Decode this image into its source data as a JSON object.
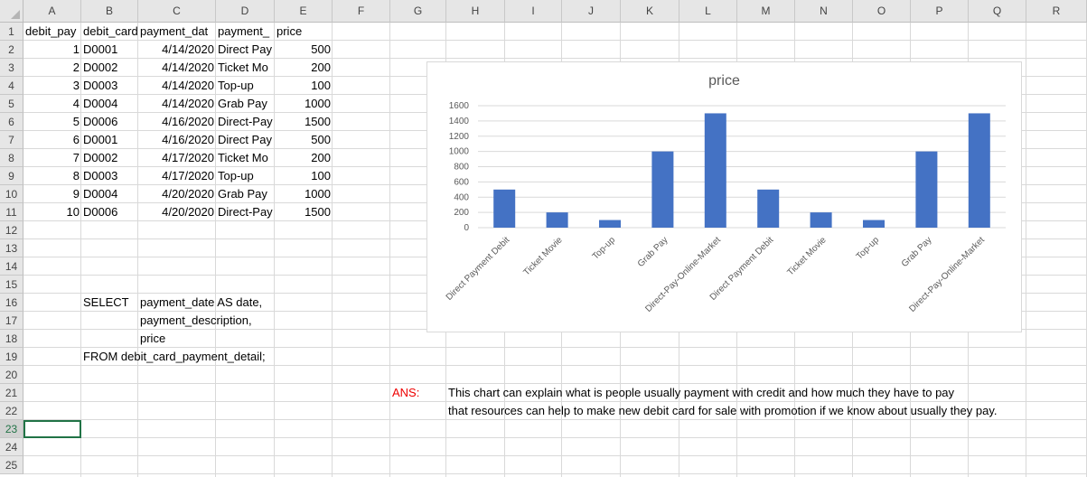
{
  "columns": [
    "A",
    "B",
    "C",
    "D",
    "E",
    "F",
    "G",
    "H",
    "I",
    "J",
    "K",
    "L",
    "M",
    "N",
    "O",
    "P",
    "Q",
    "R"
  ],
  "rows": [
    "1",
    "2",
    "3",
    "4",
    "5",
    "6",
    "7",
    "8",
    "9",
    "10",
    "11",
    "12",
    "13",
    "14",
    "15",
    "16",
    "17",
    "18",
    "19",
    "20",
    "21",
    "22",
    "23",
    "24",
    "25"
  ],
  "headers": [
    "debit_pay",
    "debit_card",
    "payment_dat",
    "payment_",
    "price"
  ],
  "table": [
    [
      "1",
      "D0001",
      "4/14/2020",
      "Direct Pay",
      "500"
    ],
    [
      "2",
      "D0002",
      "4/14/2020",
      "Ticket Mo",
      "200"
    ],
    [
      "3",
      "D0003",
      "4/14/2020",
      "Top-up",
      "100"
    ],
    [
      "4",
      "D0004",
      "4/14/2020",
      "Grab Pay",
      "1000"
    ],
    [
      "5",
      "D0006",
      "4/16/2020",
      "Direct-Pay",
      "1500"
    ],
    [
      "6",
      "D0001",
      "4/16/2020",
      "Direct Pay",
      "500"
    ],
    [
      "7",
      "D0002",
      "4/17/2020",
      "Ticket Mo",
      "200"
    ],
    [
      "8",
      "D0003",
      "4/17/2020",
      "Top-up",
      "100"
    ],
    [
      "9",
      "D0004",
      "4/20/2020",
      "Grab Pay",
      "1000"
    ],
    [
      "10",
      "D0006",
      "4/20/2020",
      "Direct-Pay",
      "1500"
    ]
  ],
  "sql": {
    "select": "SELECT",
    "line1": "payment_date AS date,",
    "line2": "payment_description,",
    "line3": "price",
    "from": "FROM debit_card_payment_detail;"
  },
  "answer": {
    "label": "ANS:",
    "line1": "This chart can explain what is people usually payment with credit and how much they have to pay",
    "line2": "that resources can help to make new debit card for sale with promotion if we know about usually they pay."
  },
  "selected_row": "23",
  "bar_color": "#4472c4",
  "chart_data": {
    "type": "bar",
    "title": "price",
    "categories": [
      "Direct Payment Debit",
      "Ticket Movie",
      "Top-up",
      "Grab Pay",
      "Direct-Pay-Online-Market",
      "Direct Payment Debit",
      "Ticket Movie",
      "Top-up",
      "Grab Pay",
      "Direct-Pay-Online-Market"
    ],
    "values": [
      500,
      200,
      100,
      1000,
      1500,
      500,
      200,
      100,
      1000,
      1500
    ],
    "yticks": [
      "0",
      "200",
      "400",
      "600",
      "800",
      "1000",
      "1200",
      "1400",
      "1600"
    ],
    "ylim": [
      0,
      1600
    ],
    "grid": true,
    "legend": "none"
  }
}
